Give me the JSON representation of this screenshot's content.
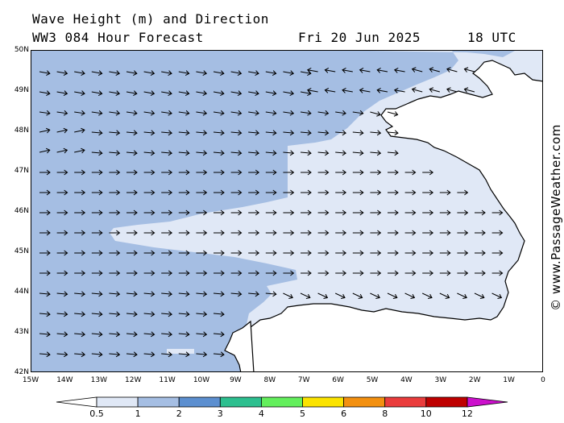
{
  "header": {
    "title_line1": "Wave Height (m) and Direction",
    "title_line2": "WW3 084 Hour Forecast",
    "date": "Fri 20 Jun 2025",
    "time": "18 UTC"
  },
  "axes": {
    "lat_labels": [
      "50N",
      "49N",
      "48N",
      "47N",
      "46N",
      "45N",
      "44N",
      "43N",
      "42N"
    ],
    "lon_labels": [
      "15W",
      "14W",
      "13W",
      "12W",
      "11W",
      "10W",
      "9W",
      "8W",
      "7W",
      "6W",
      "5W",
      "4W",
      "3W",
      "2W",
      "1W",
      "0"
    ]
  },
  "copyright": "© www.PassageWeather.com",
  "legend": {
    "labels": [
      "0.5",
      "1",
      "2",
      "3",
      "4",
      "5",
      "6",
      "8",
      "10",
      "12"
    ],
    "colors": [
      "#ffffff",
      "#e0e8f6",
      "#a5bee3",
      "#5c8fd0",
      "#2dbf8f",
      "#63ef5c",
      "#fbe300",
      "#f39010",
      "#ea3c3c",
      "#be0000",
      "#cc10cc"
    ]
  },
  "map_colors": {
    "band_1_2": "#a5bee3",
    "band_05_1": "#e0e8f6",
    "land": "#ffffff",
    "coast": "#000000"
  }
}
